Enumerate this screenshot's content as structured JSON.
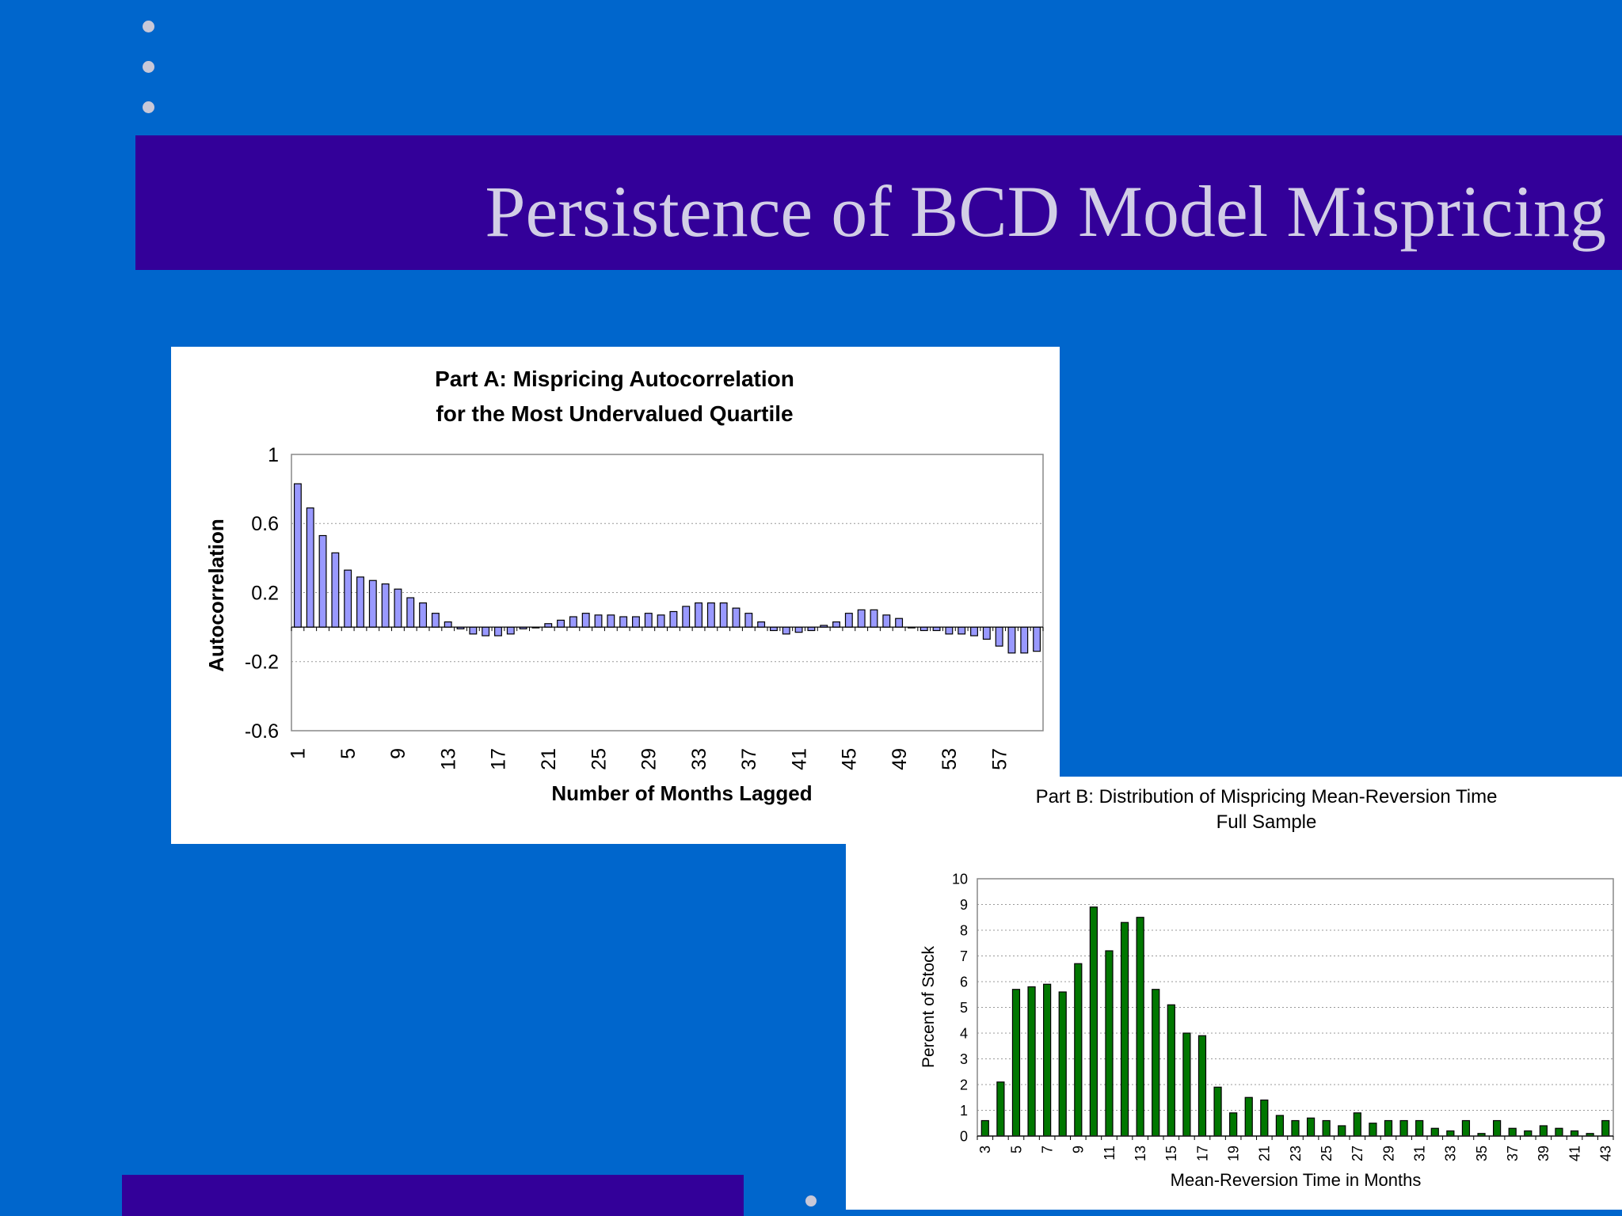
{
  "slide": {
    "title": "Persistence of BCD Model Mispricing"
  },
  "colors": {
    "background": "#0066CC",
    "title_bar": "#330099",
    "title_text": "#D2CEE6",
    "bullet": "#C8C8D8",
    "bar_a": "#9999FF",
    "bar_b": "#007700"
  },
  "chart_data": [
    {
      "type": "bar",
      "title": [
        "Part A: Mispricing Autocorrelation",
        "for the Most Undervalued Quartile"
      ],
      "xlabel": "Number of Months Lagged",
      "ylabel": "Autocorrelation",
      "ylim": [
        -0.6,
        1
      ],
      "yticks": [
        1,
        0.6,
        0.2,
        -0.2,
        -0.6
      ],
      "xtick_labels": [
        "1",
        "5",
        "9",
        "13",
        "17",
        "21",
        "25",
        "29",
        "33",
        "37",
        "41",
        "45",
        "49",
        "53",
        "57"
      ],
      "grid": true,
      "x": [
        1,
        2,
        3,
        4,
        5,
        6,
        7,
        8,
        9,
        10,
        11,
        12,
        13,
        14,
        15,
        16,
        17,
        18,
        19,
        20,
        21,
        22,
        23,
        24,
        25,
        26,
        27,
        28,
        29,
        30,
        31,
        32,
        33,
        34,
        35,
        36,
        37,
        38,
        39,
        40,
        41,
        42,
        43,
        44,
        45,
        46,
        47,
        48,
        49,
        50,
        51,
        52,
        53,
        54,
        55,
        56,
        57,
        58,
        59,
        60
      ],
      "values": [
        0.83,
        0.69,
        0.53,
        0.43,
        0.33,
        0.29,
        0.27,
        0.25,
        0.22,
        0.17,
        0.14,
        0.08,
        0.03,
        -0.01,
        -0.04,
        -0.05,
        -0.05,
        -0.04,
        -0.01,
        0,
        0.02,
        0.04,
        0.06,
        0.08,
        0.07,
        0.07,
        0.06,
        0.06,
        0.08,
        0.07,
        0.09,
        0.12,
        0.14,
        0.14,
        0.14,
        0.11,
        0.08,
        0.03,
        -0.02,
        -0.04,
        -0.03,
        -0.02,
        0.01,
        0.03,
        0.08,
        0.1,
        0.1,
        0.07,
        0.05,
        0,
        -0.02,
        -0.02,
        -0.04,
        -0.04,
        -0.05,
        -0.07,
        -0.11,
        -0.15,
        -0.15,
        -0.14
      ]
    },
    {
      "type": "bar",
      "title": [
        "Part B: Distribution of Mispricing Mean-Reversion Time",
        "Full Sample"
      ],
      "xlabel": "Mean-Reversion Time in Months",
      "ylabel": "Percent of Stock",
      "ylim": [
        0,
        10
      ],
      "yticks": [
        0,
        1,
        2,
        3,
        4,
        5,
        6,
        7,
        8,
        9,
        10
      ],
      "xtick_labels": [
        "3",
        "5",
        "7",
        "9",
        "11",
        "13",
        "15",
        "17",
        "19",
        "21",
        "23",
        "25",
        "27",
        "29",
        "31",
        "33",
        "35",
        "37",
        "39",
        "41",
        "43"
      ],
      "grid": true,
      "x": [
        3,
        4,
        5,
        6,
        7,
        8,
        9,
        10,
        11,
        12,
        13,
        14,
        15,
        16,
        17,
        18,
        19,
        20,
        21,
        22,
        23,
        24,
        25,
        26,
        27,
        28,
        29,
        30,
        31,
        32,
        33,
        34,
        35,
        36,
        37,
        38,
        39,
        40,
        41,
        42,
        43
      ],
      "values": [
        0.6,
        2.1,
        5.7,
        5.8,
        5.9,
        5.6,
        6.7,
        8.9,
        7.2,
        8.3,
        8.5,
        5.7,
        5.1,
        4,
        3.9,
        1.9,
        0.9,
        1.5,
        1.4,
        0.8,
        0.6,
        0.7,
        0.6,
        0.4,
        0.9,
        0.5,
        0.6,
        0.6,
        0.6,
        0.3,
        0.2,
        0.6,
        0.1,
        0.6,
        0.3,
        0.2,
        0.4,
        0.3,
        0.2,
        0.1,
        0.6
      ]
    }
  ]
}
